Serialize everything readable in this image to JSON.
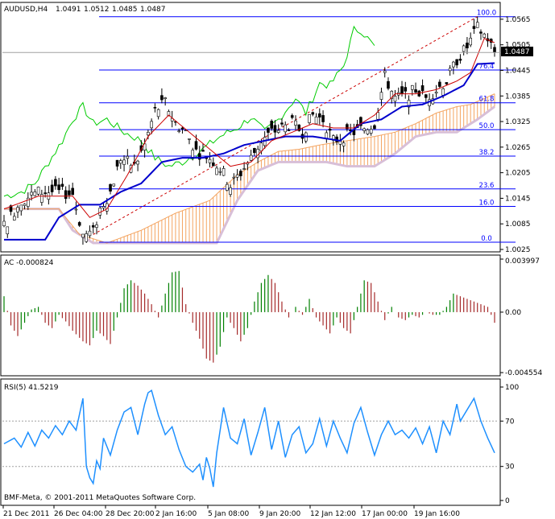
{
  "symbol_header": {
    "symbol": "AUDUSD,H4",
    "open": "1.0491",
    "high": "1.0512",
    "low": "1.0485",
    "close": "1.0487"
  },
  "current_price_label": "1.0487",
  "copyright": "BMF-Meta, © 2001-2011 MetaQuotes Software Corp.",
  "colors": {
    "bull_candle": "#ffffff",
    "bear_candle": "#000000",
    "kijun": "#0000cc",
    "tenkan": "#cc0000",
    "chikou": "#00cc00",
    "cloud_bull": "#f4a460",
    "cloud_bear": "#d8bfd8",
    "fib_lines": "#0000ff",
    "ac_up": "#008000",
    "ac_down": "#a52a2a",
    "rsi": "#1e90ff"
  },
  "chart_data": [
    {
      "type": "candlestick",
      "panel": "price",
      "title": "AUDUSD,H4",
      "ylim": [
        1.0025,
        1.0595
      ],
      "y_ticks": [
        "1.0565",
        "1.0505",
        "1.0445",
        "1.0385",
        "1.0325",
        "1.0265",
        "1.0205",
        "1.0145",
        "1.0085",
        "1.0025"
      ],
      "fibonacci_levels": [
        {
          "label": "100.0",
          "value": 1.0571
        },
        {
          "label": "76.4",
          "value": 1.0446
        },
        {
          "label": "61.8",
          "value": 1.0369
        },
        {
          "label": "50.0",
          "value": 1.0306
        },
        {
          "label": "38.2",
          "value": 1.0244
        },
        {
          "label": "23.6",
          "value": 1.0167
        },
        {
          "label": "16.0",
          "value": 1.0126
        },
        {
          "label": "0.0",
          "value": 1.0042
        }
      ],
      "price_anchors": [
        [
          0,
          1.008
        ],
        [
          5,
          1.014
        ],
        [
          10,
          1.016
        ],
        [
          15,
          1.016
        ],
        [
          20,
          1.0155
        ],
        [
          23,
          1.006
        ],
        [
          26,
          1.0065
        ],
        [
          28,
          1.012
        ],
        [
          31,
          1.016
        ],
        [
          34,
          1.024
        ],
        [
          38,
          1.022
        ],
        [
          41,
          1.027
        ],
        [
          44,
          1.035
        ],
        [
          47,
          1.037
        ],
        [
          50,
          1.032
        ],
        [
          53,
          1.03
        ],
        [
          56,
          1.0255
        ],
        [
          60,
          1.024
        ],
        [
          63,
          1.0215
        ],
        [
          66,
          1.0175
        ],
        [
          69,
          1.0205
        ],
        [
          72,
          1.024
        ],
        [
          75,
          1.028
        ],
        [
          78,
          1.03
        ],
        [
          81,
          1.031
        ],
        [
          84,
          1.032
        ],
        [
          87,
          1.03
        ],
        [
          90,
          1.034
        ],
        [
          93,
          1.033
        ],
        [
          96,
          1.028
        ],
        [
          99,
          1.029
        ],
        [
          102,
          1.03
        ],
        [
          105,
          1.031
        ],
        [
          108,
          1.032
        ],
        [
          111,
          1.043
        ],
        [
          114,
          1.038
        ],
        [
          117,
          1.0385
        ],
        [
          120,
          1.04
        ],
        [
          123,
          1.038
        ],
        [
          126,
          1.04
        ],
        [
          129,
          1.042
        ],
        [
          132,
          1.047
        ],
        [
          135,
          1.05
        ],
        [
          138,
          1.0545
        ],
        [
          141,
          1.052
        ],
        [
          143,
          1.0487
        ]
      ],
      "kijun_anchors": [
        [
          0,
          1.0048
        ],
        [
          12,
          1.0048
        ],
        [
          16,
          1.01
        ],
        [
          22,
          1.013
        ],
        [
          28,
          1.013
        ],
        [
          34,
          1.016
        ],
        [
          40,
          1.018
        ],
        [
          46,
          1.023
        ],
        [
          52,
          1.024
        ],
        [
          58,
          1.024
        ],
        [
          64,
          1.025
        ],
        [
          70,
          1.027
        ],
        [
          76,
          1.028
        ],
        [
          82,
          1.029
        ],
        [
          90,
          1.029
        ],
        [
          98,
          1.028
        ],
        [
          104,
          1.032
        ],
        [
          110,
          1.033
        ],
        [
          116,
          1.036
        ],
        [
          122,
          1.0365
        ],
        [
          128,
          1.0385
        ],
        [
          134,
          1.041
        ],
        [
          138,
          1.046
        ],
        [
          143,
          1.0462
        ]
      ],
      "tenkan_anchors": [
        [
          0,
          1.012
        ],
        [
          10,
          1.015
        ],
        [
          20,
          1.015
        ],
        [
          25,
          1.01
        ],
        [
          30,
          1.012
        ],
        [
          36,
          1.02
        ],
        [
          42,
          1.029
        ],
        [
          48,
          1.034
        ],
        [
          54,
          1.03
        ],
        [
          60,
          1.026
        ],
        [
          66,
          1.022
        ],
        [
          72,
          1.023
        ],
        [
          78,
          1.028
        ],
        [
          84,
          1.03
        ],
        [
          90,
          1.032
        ],
        [
          96,
          1.031
        ],
        [
          102,
          1.031
        ],
        [
          108,
          1.034
        ],
        [
          114,
          1.039
        ],
        [
          120,
          1.039
        ],
        [
          126,
          1.04
        ],
        [
          132,
          1.042
        ],
        [
          136,
          1.044
        ],
        [
          140,
          1.052
        ],
        [
          143,
          1.051
        ]
      ],
      "chikou_anchors": [
        [
          0,
          1.015
        ],
        [
          5,
          1.016
        ],
        [
          9,
          1.018
        ],
        [
          13,
          1.023
        ],
        [
          17,
          1.028
        ],
        [
          20,
          1.033
        ],
        [
          23,
          1.036
        ],
        [
          26,
          1.032
        ],
        [
          30,
          1.033
        ],
        [
          35,
          1.03
        ],
        [
          40,
          1.028
        ],
        [
          44,
          1.024
        ],
        [
          48,
          1.022
        ],
        [
          52,
          1.023
        ],
        [
          58,
          1.026
        ],
        [
          63,
          1.029
        ],
        [
          68,
          1.031
        ],
        [
          72,
          1.0335
        ],
        [
          76,
          1.03
        ],
        [
          80,
          1.033
        ],
        [
          85,
          1.038
        ],
        [
          88,
          1.0345
        ],
        [
          92,
          1.0415
        ],
        [
          95,
          1.041
        ],
        [
          99,
          1.0455
        ],
        [
          102,
          1.054
        ],
        [
          104,
          1.054
        ],
        [
          108,
          1.05
        ]
      ],
      "cloud_a_anchors": [
        [
          0,
          1.012
        ],
        [
          16,
          1.012
        ],
        [
          22,
          1.006
        ],
        [
          30,
          1.004
        ],
        [
          40,
          1.007
        ],
        [
          50,
          1.011
        ],
        [
          60,
          1.014
        ],
        [
          68,
          1.02
        ],
        [
          74,
          1.023
        ],
        [
          80,
          1.0255
        ],
        [
          86,
          1.026
        ],
        [
          92,
          1.027
        ],
        [
          100,
          1.028
        ],
        [
          108,
          1.029
        ],
        [
          114,
          1.03
        ],
        [
          120,
          1.032
        ],
        [
          126,
          1.0345
        ],
        [
          132,
          1.036
        ],
        [
          136,
          1.0365
        ],
        [
          143,
          1.039
        ]
      ],
      "cloud_b_anchors": [
        [
          0,
          1.012
        ],
        [
          16,
          1.012
        ],
        [
          20,
          1.007
        ],
        [
          26,
          1.004
        ],
        [
          34,
          1.004
        ],
        [
          44,
          1.004
        ],
        [
          54,
          1.004
        ],
        [
          62,
          1.004
        ],
        [
          68,
          1.014
        ],
        [
          74,
          1.021
        ],
        [
          80,
          1.023
        ],
        [
          86,
          1.023
        ],
        [
          94,
          1.023
        ],
        [
          100,
          1.022
        ],
        [
          108,
          1.022
        ],
        [
          114,
          1.025
        ],
        [
          120,
          1.029
        ],
        [
          126,
          1.03
        ],
        [
          132,
          1.03
        ],
        [
          138,
          1.033
        ],
        [
          143,
          1.036
        ]
      ],
      "trend_line": {
        "from": [
          26,
          1.006
        ],
        "to": [
          138,
          1.0571
        ]
      },
      "x_tick_labels": [
        "21 Dec 2011",
        "26 Dec 04:00",
        "28 Dec 20:00",
        "2 Jan 16:00",
        "5 Jan 08:00",
        "9 Jan 20:00",
        "12 Jan 12:00",
        "17 Jan 00:00",
        "19 Jan 16:00"
      ],
      "bars": 144
    },
    {
      "type": "bar",
      "panel": "AC",
      "title": "AC -0.000824",
      "ylim": [
        -0.00455,
        0.003997
      ],
      "y_ticks": [
        "0.003997",
        "0.00",
        "-0.004554"
      ],
      "anchors": [
        [
          0,
          0.0012
        ],
        [
          2,
          -0.001
        ],
        [
          4,
          -0.0018
        ],
        [
          6,
          -0.0008
        ],
        [
          8,
          0.0002
        ],
        [
          10,
          0.0004
        ],
        [
          12,
          -0.0008
        ],
        [
          14,
          -0.0012
        ],
        [
          16,
          -0.0002
        ],
        [
          18,
          -0.0007
        ],
        [
          20,
          -0.0014
        ],
        [
          23,
          -0.0022
        ],
        [
          25,
          -0.0025
        ],
        [
          27,
          -0.0014
        ],
        [
          29,
          -0.0018
        ],
        [
          31,
          -0.0024
        ],
        [
          33,
          -0.0004
        ],
        [
          35,
          0.0018
        ],
        [
          37,
          0.0024
        ],
        [
          39,
          0.002
        ],
        [
          41,
          0.0014
        ],
        [
          43,
          0.0006
        ],
        [
          45,
          -0.0004
        ],
        [
          47,
          0.0014
        ],
        [
          49,
          0.003
        ],
        [
          51,
          0.0031
        ],
        [
          53,
          0.0006
        ],
        [
          55,
          -0.0008
        ],
        [
          57,
          -0.002
        ],
        [
          59,
          -0.0035
        ],
        [
          61,
          -0.0038
        ],
        [
          63,
          -0.0026
        ],
        [
          65,
          -0.0004
        ],
        [
          67,
          -0.0012
        ],
        [
          69,
          -0.0022
        ],
        [
          71,
          -0.0012
        ],
        [
          73,
          0.0008
        ],
        [
          75,
          0.0022
        ],
        [
          77,
          0.0028
        ],
        [
          79,
          0.0022
        ],
        [
          81,
          0.0008
        ],
        [
          83,
          -0.0004
        ],
        [
          85,
          0.0004
        ],
        [
          87,
          -0.0002
        ],
        [
          89,
          0.001
        ],
        [
          91,
          -0.0004
        ],
        [
          93,
          -0.001
        ],
        [
          95,
          -0.0016
        ],
        [
          97,
          -0.0004
        ],
        [
          99,
          -0.0012
        ],
        [
          101,
          -0.0016
        ],
        [
          103,
          0.0004
        ],
        [
          105,
          0.0024
        ],
        [
          107,
          0.0022
        ],
        [
          109,
          0.0008
        ],
        [
          111,
          -0.0006
        ],
        [
          113,
          0.0004
        ],
        [
          115,
          -0.0004
        ],
        [
          117,
          -0.0006
        ],
        [
          119,
          -0.0002
        ],
        [
          121,
          -0.0004
        ],
        [
          123,
          0.0
        ],
        [
          125,
          -0.0002
        ],
        [
          127,
          -0.0002
        ],
        [
          129,
          0.0004
        ],
        [
          131,
          0.0014
        ],
        [
          133,
          0.0012
        ],
        [
          135,
          0.001
        ],
        [
          137,
          0.0008
        ],
        [
          139,
          0.0006
        ],
        [
          141,
          0.0004
        ],
        [
          143,
          -0.0008
        ]
      ]
    },
    {
      "type": "line",
      "panel": "RSI",
      "title": "RSI(5) 41.5219",
      "ylim": [
        0,
        100
      ],
      "y_ticks": [
        "100",
        "70",
        "30",
        "0"
      ],
      "levels": [
        70,
        30
      ],
      "anchors": [
        [
          0,
          50
        ],
        [
          3,
          55
        ],
        [
          5,
          47
        ],
        [
          7,
          60
        ],
        [
          9,
          48
        ],
        [
          11,
          62
        ],
        [
          13,
          55
        ],
        [
          15,
          66
        ],
        [
          17,
          58
        ],
        [
          19,
          70
        ],
        [
          21,
          62
        ],
        [
          23,
          90
        ],
        [
          24,
          30
        ],
        [
          25,
          20
        ],
        [
          26,
          15
        ],
        [
          27,
          35
        ],
        [
          28,
          28
        ],
        [
          29,
          55
        ],
        [
          31,
          40
        ],
        [
          33,
          62
        ],
        [
          35,
          78
        ],
        [
          37,
          82
        ],
        [
          39,
          58
        ],
        [
          41,
          85
        ],
        [
          42,
          95
        ],
        [
          43,
          97
        ],
        [
          45,
          75
        ],
        [
          47,
          58
        ],
        [
          49,
          65
        ],
        [
          51,
          45
        ],
        [
          53,
          30
        ],
        [
          55,
          25
        ],
        [
          57,
          32
        ],
        [
          58,
          18
        ],
        [
          59,
          38
        ],
        [
          60,
          28
        ],
        [
          61,
          12
        ],
        [
          62,
          42
        ],
        [
          64,
          82
        ],
        [
          66,
          55
        ],
        [
          68,
          50
        ],
        [
          70,
          72
        ],
        [
          72,
          40
        ],
        [
          74,
          60
        ],
        [
          76,
          82
        ],
        [
          78,
          45
        ],
        [
          80,
          70
        ],
        [
          82,
          38
        ],
        [
          84,
          58
        ],
        [
          86,
          65
        ],
        [
          88,
          42
        ],
        [
          90,
          50
        ],
        [
          92,
          72
        ],
        [
          94,
          48
        ],
        [
          96,
          70
        ],
        [
          98,
          55
        ],
        [
          100,
          42
        ],
        [
          102,
          68
        ],
        [
          104,
          82
        ],
        [
          106,
          60
        ],
        [
          108,
          40
        ],
        [
          110,
          58
        ],
        [
          112,
          70
        ],
        [
          114,
          58
        ],
        [
          116,
          62
        ],
        [
          118,
          55
        ],
        [
          120,
          64
        ],
        [
          122,
          50
        ],
        [
          124,
          65
        ],
        [
          126,
          42
        ],
        [
          128,
          70
        ],
        [
          130,
          58
        ],
        [
          132,
          85
        ],
        [
          133,
          70
        ],
        [
          135,
          80
        ],
        [
          137,
          90
        ],
        [
          139,
          70
        ],
        [
          141,
          55
        ],
        [
          143,
          42
        ]
      ]
    }
  ]
}
